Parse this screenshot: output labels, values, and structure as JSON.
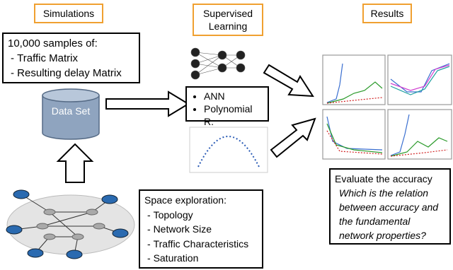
{
  "headers": {
    "simulations": "Simulations",
    "learning": "Supervised Learning",
    "results": "Results"
  },
  "samples": {
    "title": "10,000 samples of:",
    "items": [
      "Traffic Matrix",
      "Resulting delay Matrix"
    ]
  },
  "database": {
    "label": "Data Set"
  },
  "methods": {
    "items": [
      "ANN",
      "Polynomial R."
    ]
  },
  "exploration": {
    "title": "Space exploration:",
    "items": [
      "Topology",
      "Network Size",
      "Traffic Characteristics",
      "Saturation"
    ]
  },
  "evaluation": {
    "title": "Evaluate the accuracy",
    "question": "Which is the relation between accuracy and the fundamental network properties?"
  }
}
